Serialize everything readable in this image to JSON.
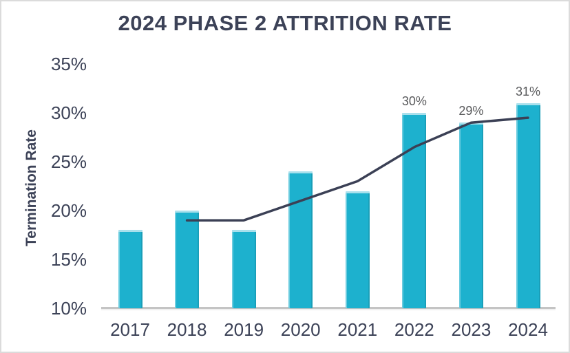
{
  "title": "2024 PHASE 2 ATTRITION RATE",
  "y_axis_title": "Termination Rate",
  "colors": {
    "border": "#dbdbdb",
    "background": "#ffffff",
    "title": "#3c4257",
    "tick_label": "#3c4257",
    "data_label": "#58595b",
    "bar_fill": "#1db1ce",
    "bar_edge": "#a9e0ec",
    "axis_line": "#c4c4c4",
    "line": "#3b4055"
  },
  "chart_data": {
    "type": "bar",
    "title": "2024 PHASE 2 ATTRITION RATE",
    "xlabel": "",
    "ylabel": "Termination Rate",
    "categories": [
      "2017",
      "2018",
      "2019",
      "2020",
      "2021",
      "2022",
      "2023",
      "2024"
    ],
    "series": [
      {
        "name": "termination-rate-bars",
        "type": "bar",
        "unit": "%",
        "values": [
          18,
          20,
          18,
          24,
          22,
          30,
          29,
          31
        ]
      },
      {
        "name": "trend-line",
        "type": "line",
        "unit": "%",
        "values": [
          null,
          19,
          19,
          21,
          23,
          26.5,
          29,
          29.5
        ]
      }
    ],
    "data_labels": [
      "",
      "",
      "",
      "",
      "",
      "30%",
      "29%",
      "31%"
    ],
    "ylim": [
      10,
      35
    ],
    "y_ticks": [
      {
        "value": 35,
        "label": "35%"
      },
      {
        "value": 30,
        "label": "30%"
      },
      {
        "value": 25,
        "label": "25%"
      },
      {
        "value": 20,
        "label": "20%"
      },
      {
        "value": 15,
        "label": "15%"
      },
      {
        "value": 10,
        "label": "10%"
      }
    ],
    "grid": false,
    "legend_position": "none"
  }
}
